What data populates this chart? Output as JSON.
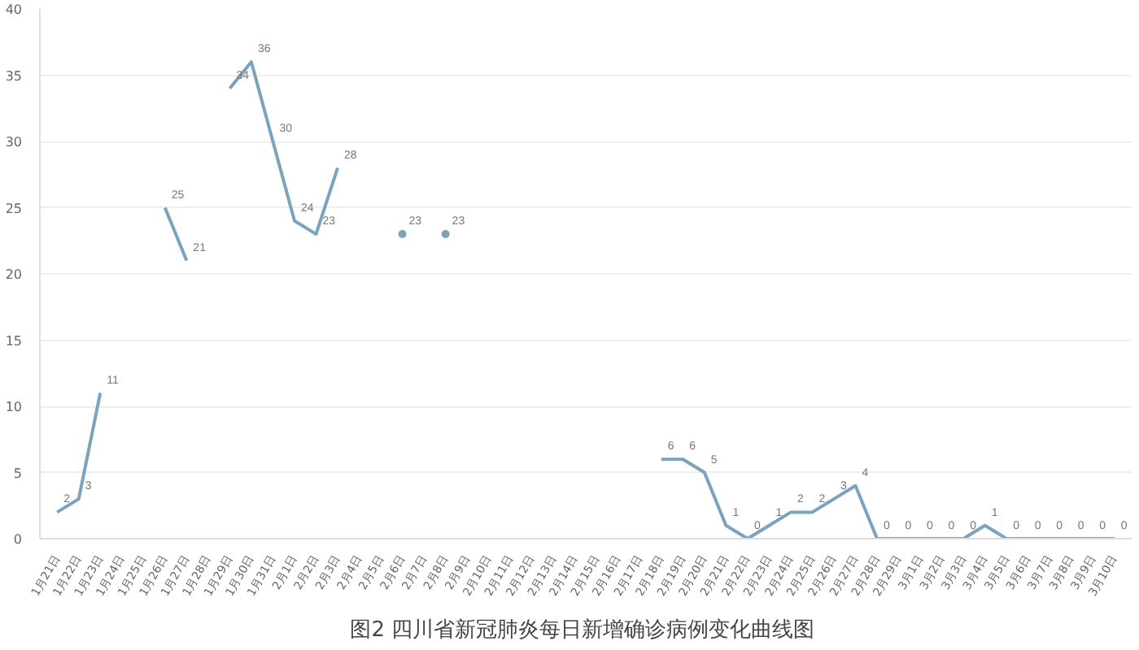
{
  "chart_data": {
    "type": "line",
    "title": "图2  四川省新冠肺炎每日新增确诊病例变化曲线图",
    "categories": [
      "1月21日",
      "1月22日",
      "1月23日",
      "1月24日",
      "1月25日",
      "1月26日",
      "1月27日",
      "1月28日",
      "1月29日",
      "1月30日",
      "1月31日",
      "2月1日",
      "2月2日",
      "2月3日",
      "2月4日",
      "2月5日",
      "2月6日",
      "2月7日",
      "2月8日",
      "2月9日",
      "2月10日",
      "2月11日",
      "2月12日",
      "2月13日",
      "2月14日",
      "2月15日",
      "2月16日",
      "2月17日",
      "2月18日",
      "2月19日",
      "2月20日",
      "2月21日",
      "2月22日",
      "2月23日",
      "2月24日",
      "2月25日",
      "2月26日",
      "2月27日",
      "2月28日",
      "2月29日",
      "3月1日",
      "3月2日",
      "3月3日",
      "3月4日",
      "3月5日",
      "3月6日",
      "3月7日",
      "3月8日",
      "3月9日",
      "3月10日"
    ],
    "series": [
      {
        "color": "#7ba3be",
        "values": [
          2,
          3,
          11,
          null,
          null,
          25,
          21,
          null,
          34,
          36,
          30,
          24,
          23,
          28,
          null,
          null,
          23,
          null,
          23,
          null,
          null,
          null,
          null,
          null,
          null,
          null,
          null,
          null,
          6,
          6,
          5,
          1,
          0,
          1,
          2,
          2,
          3,
          4,
          0,
          0,
          0,
          0,
          0,
          1,
          0,
          0,
          0,
          0,
          0,
          0
        ]
      }
    ],
    "ylim": [
      0,
      40
    ],
    "yticks": [
      0,
      5,
      10,
      15,
      20,
      25,
      30,
      35,
      40
    ],
    "grid": "y",
    "data_labels": true,
    "marker": "none",
    "line_style": "solid"
  }
}
